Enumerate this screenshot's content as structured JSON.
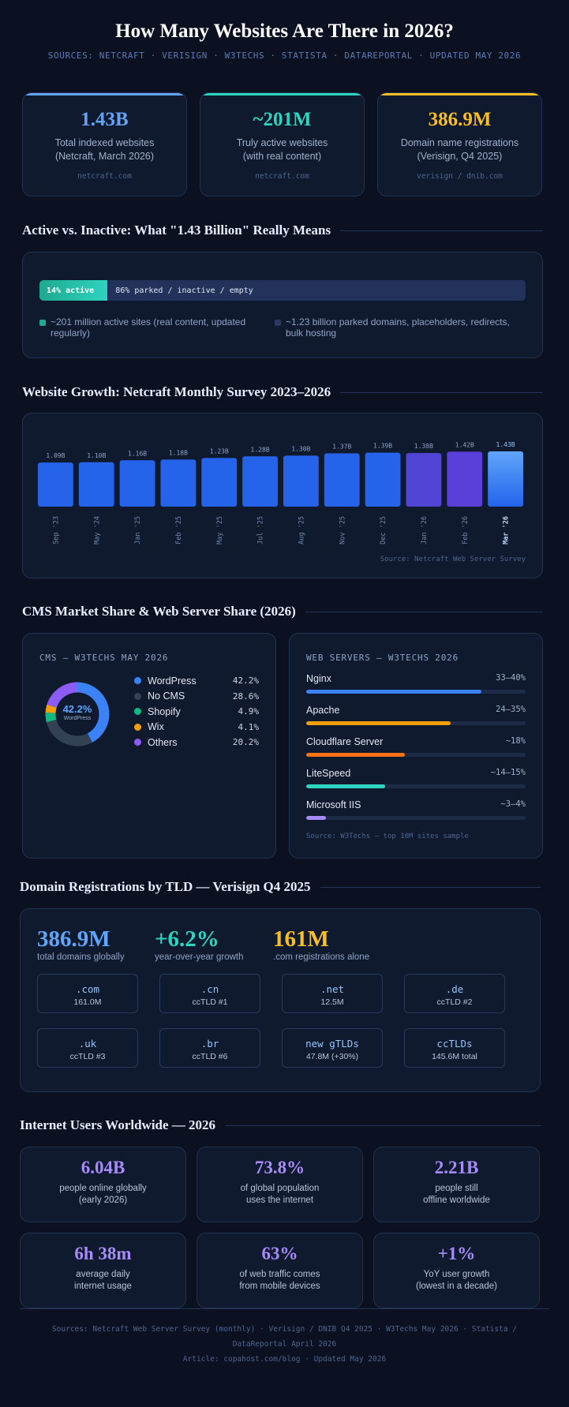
{
  "header": {
    "title": "How Many Websites Are There in 2026?",
    "subtitle": "SOURCES: NETCRAFT · VERISIGN · W3TECHS · STATISTA · DATAREPORTAL · UPDATED MAY 2026"
  },
  "top_stats": [
    {
      "value": "1.43B",
      "label_1": "Total indexed websites",
      "label_2": "(Netcraft, March 2026)",
      "source": "netcraft.com",
      "color": "#60a5fa"
    },
    {
      "value": "~201M",
      "label_1": "Truly active websites",
      "label_2": "(with real content)",
      "source": "netcraft.com",
      "color": "#2dd4bf"
    },
    {
      "value": "386.9M",
      "label_1": "Domain name registrations",
      "label_2": "(Verisign, Q4 2025)",
      "source": "verisign / dnib.com",
      "color": "#fbbf24"
    }
  ],
  "active_section": {
    "title": "Active vs. Inactive: What \"1.43 Billion\" Really Means",
    "active_label": "14% active",
    "inactive_label": "86% parked / inactive / empty",
    "active_fraction": 0.14,
    "legend_active_1": "~201 million active sites (real content, updated",
    "legend_active_2": "regularly)",
    "legend_inactive_1": "~1.23 billion parked domains, placeholders, redirects,",
    "legend_inactive_2": "bulk hosting",
    "active_color": "#2dd4bf",
    "inactive_color": "#2a3a62"
  },
  "growth_section": {
    "title": "Website Growth: Netcraft Monthly Survey 2023–2026",
    "source": "Source: Netcraft Web Server Survey"
  },
  "chart_data": {
    "type": "bar",
    "categories": [
      "Sep '23",
      "May '24",
      "Jan '25",
      "Feb '25",
      "May '25",
      "Jul '25",
      "Aug '25",
      "Nov '25",
      "Dec '25",
      "Jan '26",
      "Feb '26",
      "Mar '26"
    ],
    "values": [
      1.09,
      1.1,
      1.16,
      1.18,
      1.23,
      1.28,
      1.3,
      1.37,
      1.39,
      1.38,
      1.42,
      1.43
    ],
    "value_labels": [
      "1.09B",
      "1.10B",
      "1.16B",
      "1.18B",
      "1.23B",
      "1.28B",
      "1.30B",
      "1.37B",
      "1.39B",
      "1.38B",
      "1.42B",
      "1.43B"
    ],
    "colors": [
      "#2563eb",
      "#2563eb",
      "#2563eb",
      "#2563eb",
      "#2563eb",
      "#2563eb",
      "#2563eb",
      "#2563eb",
      "#2563eb",
      "#5145d6",
      "#5b3fd9",
      "#3b82f6"
    ],
    "highlight_index": 11,
    "ylim": [
      0,
      1.43
    ]
  },
  "cms_section": {
    "title": "CMS Market Share & Web Server Share (2026)",
    "cms_header": "CMS — W3TECHS MAY 2026",
    "center_value": "42.2%",
    "center_label": "WordPress",
    "items": [
      {
        "name": "WordPress",
        "pct": "42.2%",
        "value": 42.2,
        "color": "#3b82f6"
      },
      {
        "name": "No CMS",
        "pct": "28.6%",
        "value": 28.6,
        "color": "#334155"
      },
      {
        "name": "Shopify",
        "pct": "4.9%",
        "value": 4.9,
        "color": "#10b981"
      },
      {
        "name": "Wix",
        "pct": "4.1%",
        "value": 4.1,
        "color": "#f59e0b"
      },
      {
        "name": "Others",
        "pct": "20.2%",
        "value": 20.2,
        "color": "#8b5cf6"
      }
    ],
    "server_header": "WEB SERVERS — W3TECHS 2026",
    "servers": [
      {
        "name": "Nginx",
        "range": "33–40%",
        "fill": 0.8,
        "color": "#3b82f6"
      },
      {
        "name": "Apache",
        "range": "24–35%",
        "fill": 0.66,
        "color": "#f59e0b"
      },
      {
        "name": "Cloudflare Server",
        "range": "~18%",
        "fill": 0.45,
        "color": "#f97316"
      },
      {
        "name": "LiteSpeed",
        "range": "~14–15%",
        "fill": 0.36,
        "color": "#2dd4bf"
      },
      {
        "name": "Microsoft IIS",
        "range": "~3–4%",
        "fill": 0.09,
        "color": "#a78bfa"
      }
    ],
    "server_source": "Source: W3Techs — top 10M sites sample"
  },
  "domain_section": {
    "title": "Domain Registrations by TLD — Verisign Q4 2025",
    "stats": [
      {
        "value": "386.9M",
        "label": "total domains globally",
        "color": "#60a5fa"
      },
      {
        "value": "+6.2%",
        "label": "year-over-year growth",
        "color": "#2dd4bf"
      },
      {
        "value": "161M",
        "label": ".com registrations alone",
        "color": "#fbbf24"
      }
    ],
    "tlds": [
      {
        "name": ".com",
        "sub": "161.0M"
      },
      {
        "name": ".cn",
        "sub": "ccTLD #1"
      },
      {
        "name": ".net",
        "sub": "12.5M"
      },
      {
        "name": ".de",
        "sub": "ccTLD #2"
      },
      {
        "name": ".uk",
        "sub": "ccTLD #3"
      },
      {
        "name": ".br",
        "sub": "ccTLD #6"
      },
      {
        "name": "new gTLDs",
        "sub": "47.8M (+30%)"
      },
      {
        "name": "ccTLDs",
        "sub": "145.6M total"
      }
    ]
  },
  "users_section": {
    "title": "Internet Users Worldwide — 2026",
    "stats": [
      {
        "value": "6.04B",
        "l1": "people online globally",
        "l2": "(early 2026)"
      },
      {
        "value": "73.8%",
        "l1": "of global population",
        "l2": "uses the internet"
      },
      {
        "value": "2.21B",
        "l1": "people still",
        "l2": "offline worldwide"
      },
      {
        "value": "6h 38m",
        "l1": "average daily",
        "l2": "internet usage"
      },
      {
        "value": "63%",
        "l1": "of web traffic comes",
        "l2": "from mobile devices"
      },
      {
        "value": "+1%",
        "l1": "YoY user growth",
        "l2": "(lowest in a decade)"
      }
    ]
  },
  "footer": {
    "line1": "Sources: Netcraft Web Server Survey (monthly) · Verisign / DNIB Q4 2025 · W3Techs May 2026 · Statista /",
    "line2": "DataReportal April 2026",
    "line3": "Article: copahost.com/blog · Updated May 2026"
  }
}
